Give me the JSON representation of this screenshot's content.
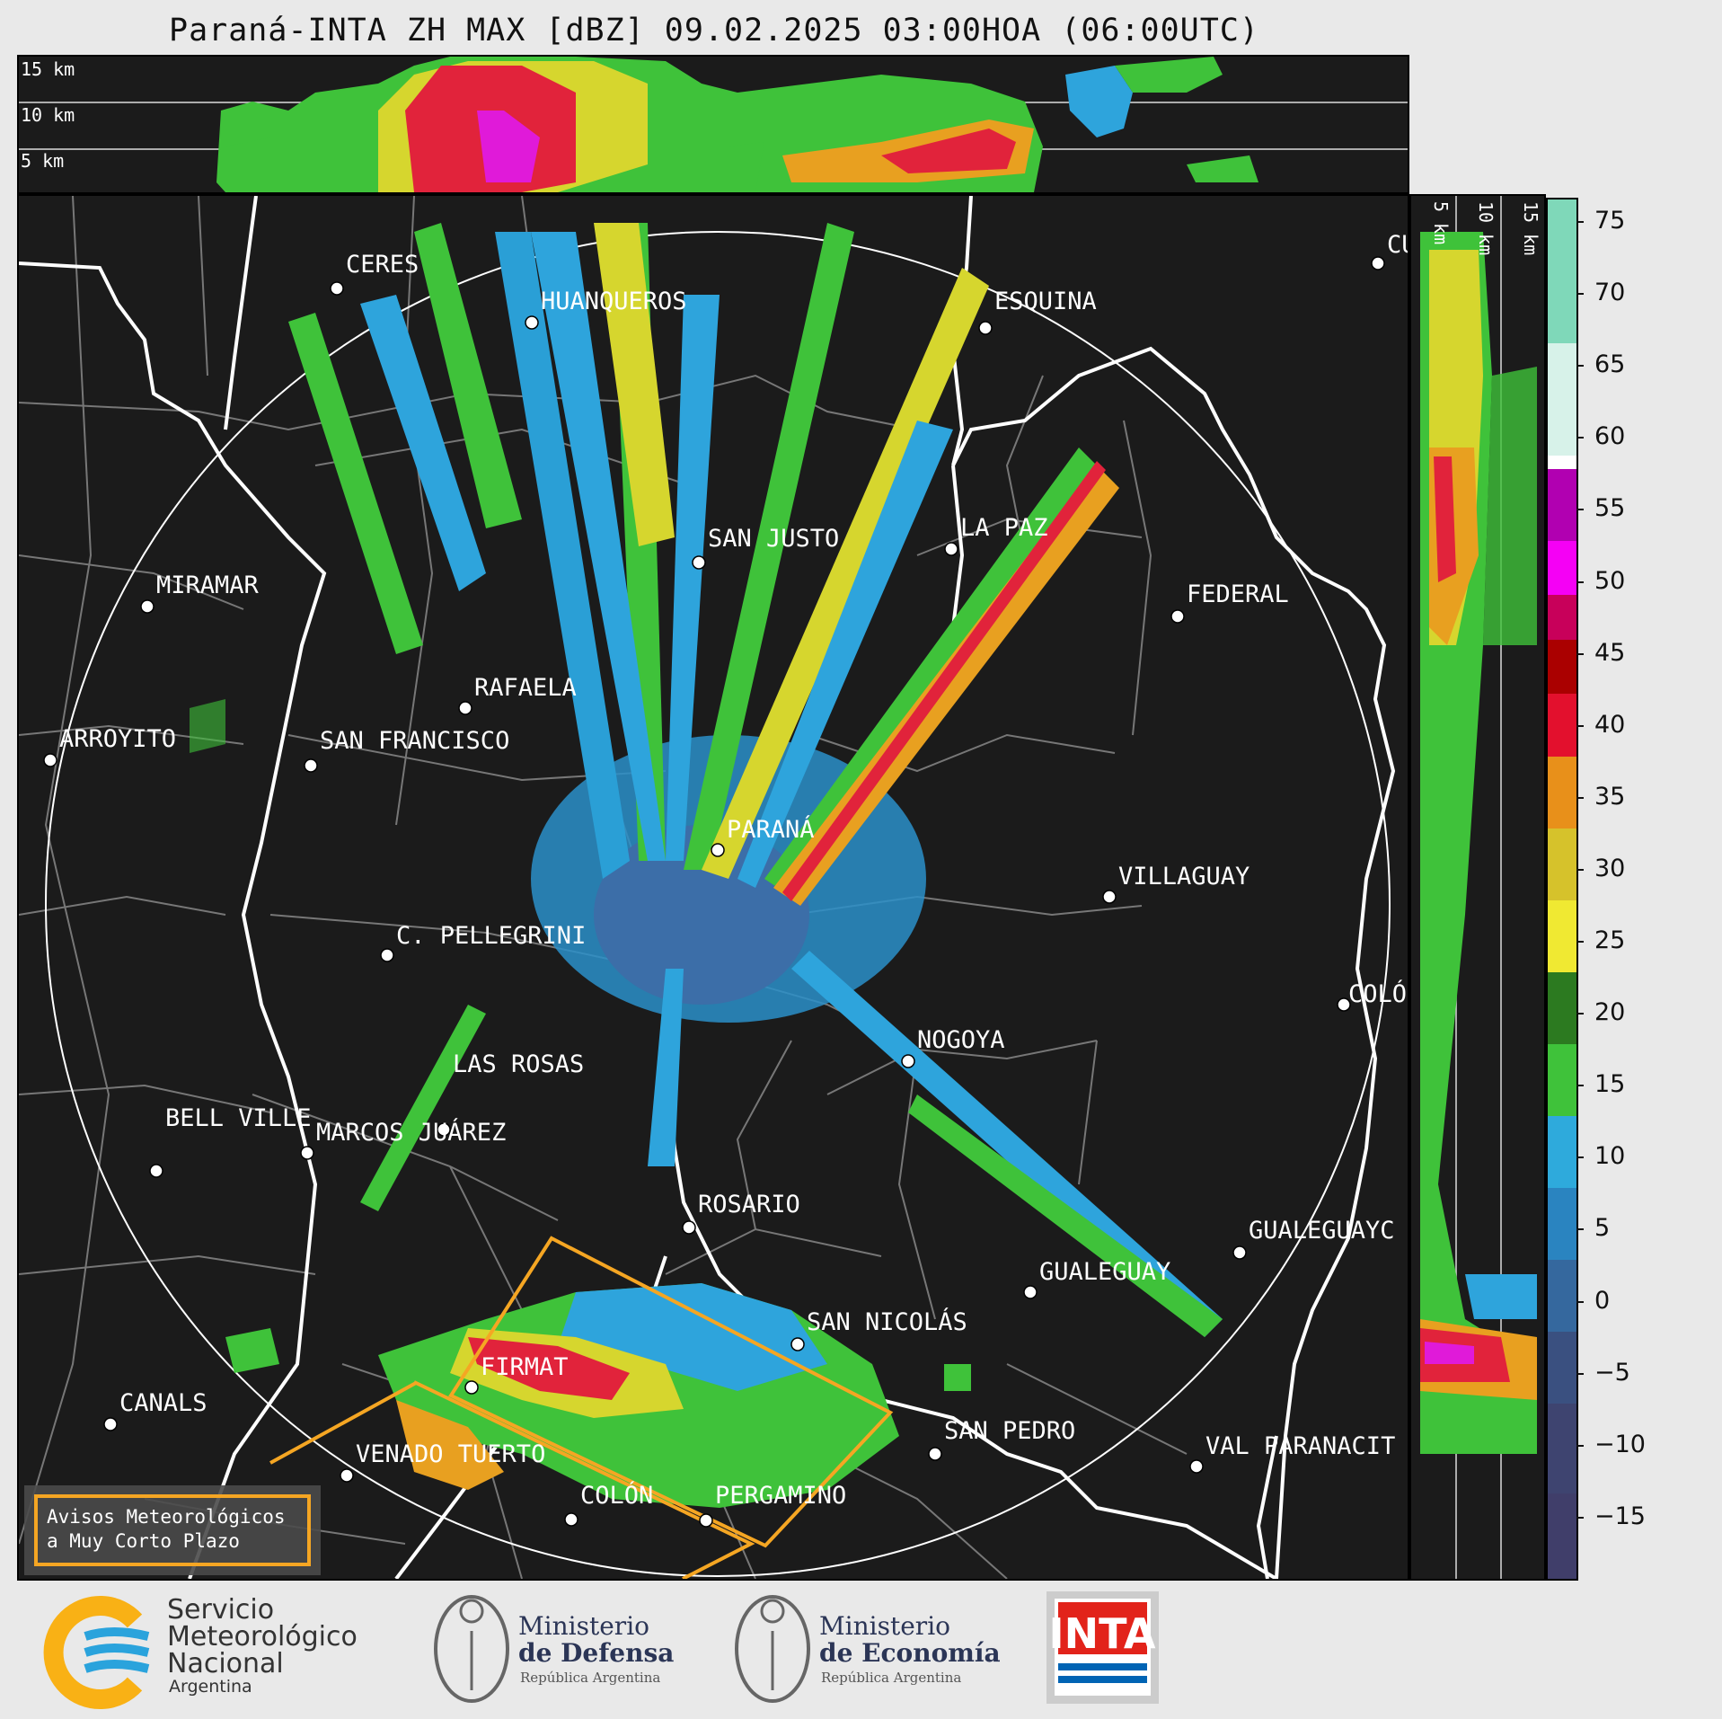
{
  "title": "Paraná-INTA ZH MAX [dBZ] 09.02.2025 03:00HOA (06:00UTC)",
  "top_height_labels": [
    "15 km",
    "10 km",
    "5 km"
  ],
  "right_height_labels": [
    "5 km",
    "10 km",
    "15 km"
  ],
  "cities": [
    {
      "id": "ceres",
      "name": "CERES"
    },
    {
      "id": "huanqueros",
      "name": "HUANQUEROS"
    },
    {
      "id": "esquina",
      "name": "ESQUINA"
    },
    {
      "id": "cu",
      "name": "CU"
    },
    {
      "id": "san-justo",
      "name": "SAN JUSTO"
    },
    {
      "id": "la-paz",
      "name": "LA PAZ"
    },
    {
      "id": "miramar",
      "name": "MIRAMAR"
    },
    {
      "id": "federal",
      "name": "FEDERAL"
    },
    {
      "id": "rafaela",
      "name": "RAFAELA"
    },
    {
      "id": "arroyito",
      "name": "ARROYITO"
    },
    {
      "id": "san-francisco",
      "name": "SAN FRANCISCO"
    },
    {
      "id": "parana",
      "name": "PARANÁ"
    },
    {
      "id": "villaguay",
      "name": "VILLAGUAY"
    },
    {
      "id": "c-pellegrini",
      "name": "C. PELLEGRINI"
    },
    {
      "id": "colon-er",
      "name": "COLÓ"
    },
    {
      "id": "nogoya",
      "name": "NOGOYA"
    },
    {
      "id": "las-rosas",
      "name": "LAS ROSAS"
    },
    {
      "id": "bell-ville",
      "name": "BELL VILLE"
    },
    {
      "id": "marcos-juarez",
      "name": "MARCOS JUÁREZ"
    },
    {
      "id": "rosario",
      "name": "ROSARIO"
    },
    {
      "id": "gualeguayc",
      "name": "GUALEGUAYC"
    },
    {
      "id": "gualeguay",
      "name": "GUALEGUAY"
    },
    {
      "id": "san-nicolas",
      "name": "SAN NICOLÁS"
    },
    {
      "id": "firmat",
      "name": "FIRMAT"
    },
    {
      "id": "canals",
      "name": "CANALS"
    },
    {
      "id": "san-pedro",
      "name": "SAN PEDRO"
    },
    {
      "id": "venado-tuerto",
      "name": "VENADO TUERTO"
    },
    {
      "id": "val-paranacit",
      "name": "VAL PARANACIT"
    },
    {
      "id": "colon-ba",
      "name": "COLÓN"
    },
    {
      "id": "pergamino",
      "name": "PERGAMINO"
    }
  ],
  "warning_legend": {
    "line1": "Avisos Meteorológicos",
    "line2": "a Muy Corto Plazo",
    "color": "#f5a623"
  },
  "colorbar": {
    "unit": "dBZ",
    "ticks": [
      "75",
      "70",
      "65",
      "60",
      "55",
      "50",
      "45",
      "40",
      "35",
      "30",
      "25",
      "20",
      "15",
      "10",
      "5",
      "0",
      "−5",
      "−10",
      "−15"
    ],
    "range": [
      -20,
      77
    ]
  },
  "logos": {
    "smn": {
      "line1": "Servicio",
      "line2": "Meteorológico",
      "line3": "Nacional",
      "line4": "Argentina"
    },
    "defensa": {
      "line1": "Ministerio",
      "line2": "de Defensa",
      "line3": "República Argentina"
    },
    "economia": {
      "line1": "Ministerio",
      "line2": "de Economía",
      "line3": "República Argentina"
    },
    "inta": {
      "text": "INTA"
    }
  }
}
